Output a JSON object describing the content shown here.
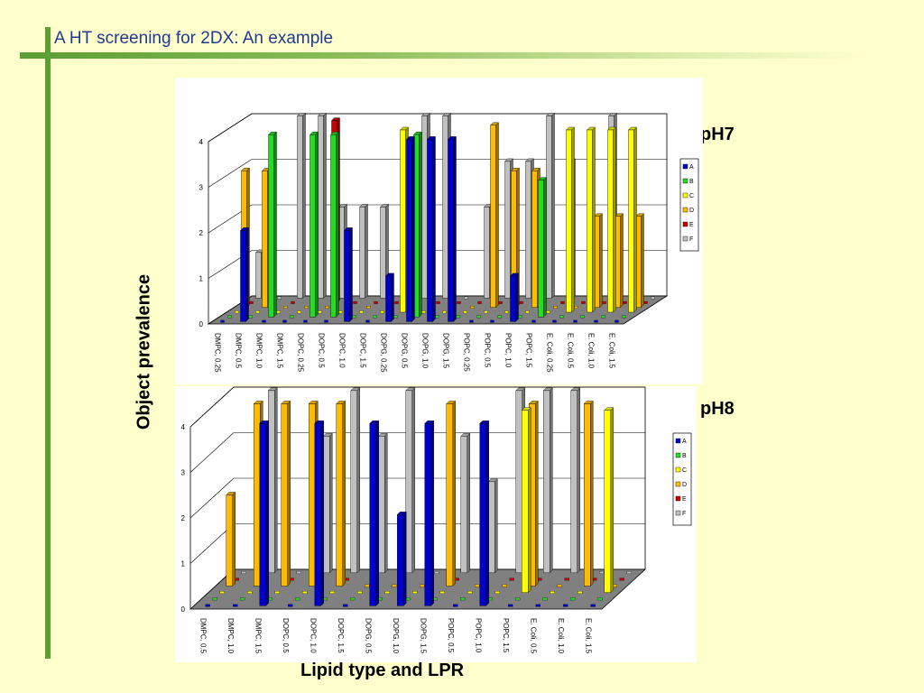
{
  "title": "A HT screening for 2DX: An example",
  "ylabel": "Object prevalence",
  "xlabel": "Lipid type and LPR",
  "colors": {
    "A": "#0000cc",
    "B": "#22dd22",
    "C": "#ffff00",
    "D": "#ffbb00",
    "E": "#cc0000",
    "F": "#c0c0c0"
  },
  "chart_data": [
    {
      "type": "bar",
      "subtitle": "pH7",
      "ylim": [
        0,
        4
      ],
      "yticks": [
        "0",
        "1",
        "2",
        "3",
        "4"
      ],
      "legend_placement": "right",
      "categories": [
        "DMPC, 0.25",
        "DMPC, 0.5",
        "DMPC, 1.0",
        "DMPC, 1.5",
        "DOPC, 0.25",
        "DOPC, 0.5",
        "DOPC, 1.0",
        "DOPC, 1.5",
        "DOPG, 0.25",
        "DOPG, 0.5",
        "DOPG, 1.0",
        "DOPG, 1.5",
        "POPC, 0.25",
        "POPC, 0.5",
        "POPC, 1.0",
        "POPC, 1.5",
        "E. Coli, 0.25",
        "E. Coli, 0.5",
        "E. Coli, 1.0",
        "E. Coli, 1.5"
      ],
      "series": [
        {
          "name": "A",
          "values": [
            0,
            2,
            0,
            0,
            0,
            0,
            2,
            0,
            1,
            4,
            4,
            4,
            0,
            0,
            1,
            0,
            0,
            0,
            0,
            0
          ]
        },
        {
          "name": "B",
          "values": [
            0,
            0,
            4,
            0,
            4,
            4,
            0,
            0,
            0,
            4,
            0,
            0,
            0,
            0,
            0,
            3,
            0,
            0,
            0,
            0
          ]
        },
        {
          "name": "C",
          "values": [
            0,
            0,
            0,
            0,
            0,
            0,
            0,
            0,
            4,
            0,
            0,
            0,
            0,
            0,
            0,
            0,
            4,
            4,
            4,
            4
          ]
        },
        {
          "name": "D",
          "values": [
            3,
            3,
            0,
            0,
            0,
            0,
            0,
            0,
            0,
            0,
            0,
            0,
            4,
            3,
            3,
            0,
            0,
            2,
            2,
            2
          ]
        },
        {
          "name": "E",
          "values": [
            0,
            0,
            0,
            0,
            4,
            0,
            0,
            0,
            0,
            0,
            0,
            0,
            0,
            0,
            0,
            0,
            0,
            0,
            0,
            0
          ]
        },
        {
          "name": "F",
          "values": [
            1,
            0,
            4,
            4,
            2,
            2,
            2,
            0,
            4,
            4,
            0,
            2,
            3,
            3,
            4,
            3,
            0,
            4,
            0,
            0
          ]
        }
      ]
    },
    {
      "type": "bar",
      "subtitle": "pH8",
      "ylim": [
        0,
        4
      ],
      "yticks": [
        "0",
        "1",
        "2",
        "3",
        "4"
      ],
      "legend_placement": "right",
      "categories": [
        "DMPC, 0.5",
        "DMPC, 1.0",
        "DMPC, 1.5",
        "DOPC, 0.5",
        "DOPC, 1.0",
        "DOPC, 1.5",
        "DOPG, 0.5",
        "DOPG, 1.0",
        "DOPG, 1.5",
        "POPC, 0.5",
        "POPC, 1.0",
        "POPC, 1.5",
        "E. Coli, 0.5",
        "E. Coli, 1.0",
        "E. Coli, 1.5"
      ],
      "series": [
        {
          "name": "A",
          "values": [
            0,
            0,
            4,
            0,
            4,
            0,
            4,
            2,
            4,
            0,
            4,
            0,
            0,
            0,
            0
          ]
        },
        {
          "name": "B",
          "values": [
            0,
            0,
            0,
            0,
            0,
            0,
            0,
            0,
            0,
            0,
            0,
            0,
            0,
            0,
            0
          ]
        },
        {
          "name": "C",
          "values": [
            0,
            0,
            0,
            0,
            0,
            0,
            0,
            0,
            0,
            0,
            0,
            4,
            0,
            0,
            4
          ]
        },
        {
          "name": "D",
          "values": [
            2,
            4,
            4,
            4,
            4,
            0,
            0,
            0,
            4,
            0,
            0,
            4,
            0,
            4,
            0
          ]
        },
        {
          "name": "E",
          "values": [
            0,
            0,
            0,
            0,
            0,
            0,
            0,
            0,
            0,
            0,
            0,
            0,
            0,
            0,
            0
          ]
        },
        {
          "name": "F",
          "values": [
            0,
            4,
            0,
            3,
            4,
            3,
            4,
            0,
            3,
            2,
            4,
            4,
            4,
            0,
            0
          ]
        }
      ]
    }
  ]
}
